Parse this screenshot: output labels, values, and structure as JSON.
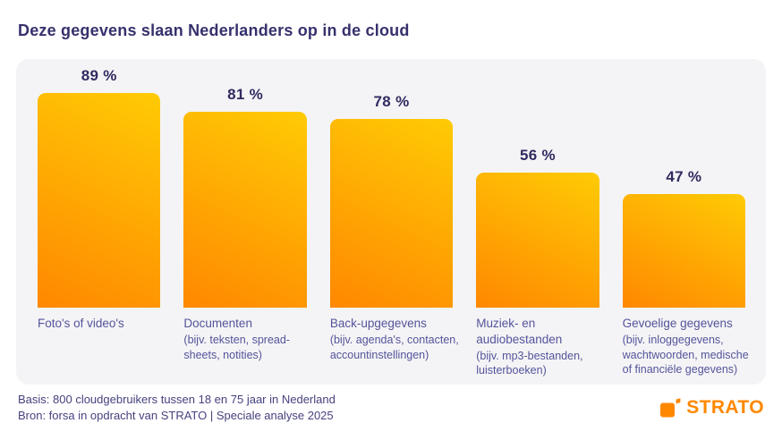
{
  "title": "Deze gegevens slaan Nederlanders op in de cloud",
  "chart_data": {
    "type": "bar",
    "title": "Deze gegevens slaan Nederlanders op in de cloud",
    "unit": "%",
    "ylim": [
      0,
      100
    ],
    "grid": false,
    "legend": false,
    "categories": [
      "Foto's of video's",
      "Documenten",
      "Back-upgegevens",
      "Muziek- en audiobestanden",
      "Gevoelige gegevens"
    ],
    "values": [
      89,
      81,
      78,
      56,
      47
    ],
    "bars": [
      {
        "category": "Foto's of video's",
        "sublabel": "",
        "value": 89,
        "pct_label": "89 %"
      },
      {
        "category": "Documenten",
        "sublabel": "(bijv. teksten, spread-sheets, notities)",
        "value": 81,
        "pct_label": "81 %"
      },
      {
        "category": "Back-upgegevens",
        "sublabel": "(bijv. agenda's, contacten, accountinstellingen)",
        "value": 78,
        "pct_label": "78 %"
      },
      {
        "category": "Muziek- en audiobestanden",
        "sublabel": "(bijv. mp3-bestanden, luisterboeken)",
        "value": 56,
        "pct_label": "56 %"
      },
      {
        "category": "Gevoelige gegevens",
        "sublabel": "(bijv. inloggegevens, wachtwoorden, medische of financiële gegevens)",
        "value": 47,
        "pct_label": "47 %"
      }
    ]
  },
  "footer": {
    "basis": "Basis: 800 cloudgebruikers tussen 18 en 75 jaar in Nederland",
    "bron": "Bron: forsa in opdracht van STRATO | Speciale analyse 2025",
    "logo_text": "STRATO"
  },
  "colors": {
    "title": "#36316d",
    "bar_gradient_top": "#ffcb05",
    "bar_gradient_bottom": "#ff8800",
    "category_label": "#54549b",
    "panel_background": "#f4f4f6",
    "brand_orange": "#ff8800"
  }
}
